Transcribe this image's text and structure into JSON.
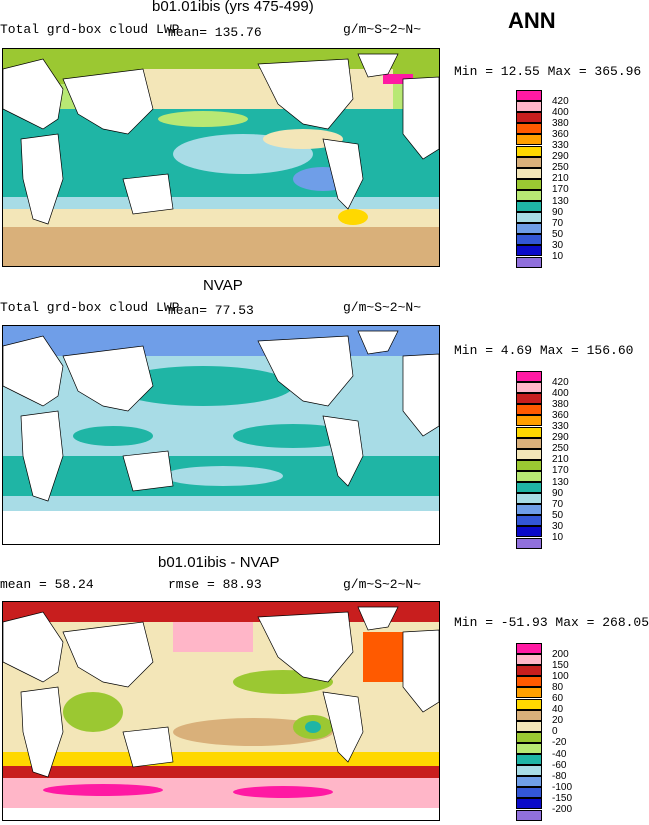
{
  "season": "ANN",
  "panels": [
    {
      "title": "b01.01ibis (yrs 475-499)",
      "variable": "Total grd-box cloud LWP",
      "stat": "mean=  135.76",
      "units": "g/m~S~2~N~",
      "range": "Min =  12.55 Max = 365.96",
      "legend": {
        "labels": [
          "420",
          "400",
          "380",
          "360",
          "330",
          "290",
          "250",
          "210",
          "170",
          "130",
          "90",
          "70",
          "50",
          "30",
          "10"
        ],
        "colors": [
          "#ff1aa3",
          "#ffb6c8",
          "#c81e1e",
          "#ff5a00",
          "#ffa000",
          "#ffd800",
          "#d9b07a",
          "#f3e6b8",
          "#9bc832",
          "#b8e874",
          "#1fb5a5",
          "#a8dce6",
          "#6f9ee8",
          "#3357d6",
          "#0a0ac8",
          "#9070dc"
        ]
      }
    },
    {
      "title": "NVAP",
      "variable": "Total grd-box cloud LWP",
      "stat": "mean=   77.53",
      "units": "g/m~S~2~N~",
      "range": "Min =   4.69 Max = 156.60",
      "legend": {
        "labels": [
          "420",
          "400",
          "380",
          "360",
          "330",
          "290",
          "250",
          "210",
          "170",
          "130",
          "90",
          "70",
          "50",
          "30",
          "10"
        ],
        "colors": [
          "#ff1aa3",
          "#ffb6c8",
          "#c81e1e",
          "#ff5a00",
          "#ffa000",
          "#ffd800",
          "#d9b07a",
          "#f3e6b8",
          "#9bc832",
          "#b8e874",
          "#1fb5a5",
          "#a8dce6",
          "#6f9ee8",
          "#3357d6",
          "#0a0ac8",
          "#9070dc"
        ]
      }
    },
    {
      "title": "b01.01ibis - NVAP",
      "stat_left": "mean =   58.24",
      "stat_mid": "rmse =   88.93",
      "units": "g/m~S~2~N~",
      "range": "Min = -51.93 Max = 268.05",
      "legend": {
        "labels": [
          "200",
          "150",
          "100",
          "80",
          "60",
          "40",
          "20",
          "0",
          "-20",
          "-40",
          "-60",
          "-80",
          "-100",
          "-150",
          "-200"
        ],
        "colors": [
          "#ff1aa3",
          "#ffb6c8",
          "#c81e1e",
          "#ff5a00",
          "#ffa000",
          "#ffd800",
          "#d9b07a",
          "#f3e6b8",
          "#9bc832",
          "#b8e874",
          "#1fb5a5",
          "#a8dce6",
          "#6f9ee8",
          "#3357d6",
          "#0a0ac8",
          "#9070dc"
        ]
      }
    }
  ],
  "chart_data": [
    {
      "type": "heatmap",
      "title": "b01.01ibis (yrs 475-499)",
      "subtitle": "Total grd-box cloud LWP",
      "mean": 135.76,
      "min": 12.55,
      "max": 365.96,
      "units": "g/m~S~2~N~",
      "levels": [
        10,
        30,
        50,
        70,
        90,
        130,
        170,
        210,
        250,
        290,
        330,
        360,
        380,
        400,
        420
      ]
    },
    {
      "type": "heatmap",
      "title": "NVAP",
      "subtitle": "Total grd-box cloud LWP",
      "mean": 77.53,
      "min": 4.69,
      "max": 156.6,
      "units": "g/m~S~2~N~",
      "levels": [
        10,
        30,
        50,
        70,
        90,
        130,
        170,
        210,
        250,
        290,
        330,
        360,
        380,
        400,
        420
      ]
    },
    {
      "type": "heatmap",
      "title": "b01.01ibis - NVAP",
      "mean": 58.24,
      "rmse": 88.93,
      "min": -51.93,
      "max": 268.05,
      "units": "g/m~S~2~N~",
      "levels": [
        -200,
        -150,
        -100,
        -80,
        -60,
        -40,
        -20,
        0,
        20,
        40,
        60,
        80,
        100,
        150,
        200
      ]
    }
  ]
}
